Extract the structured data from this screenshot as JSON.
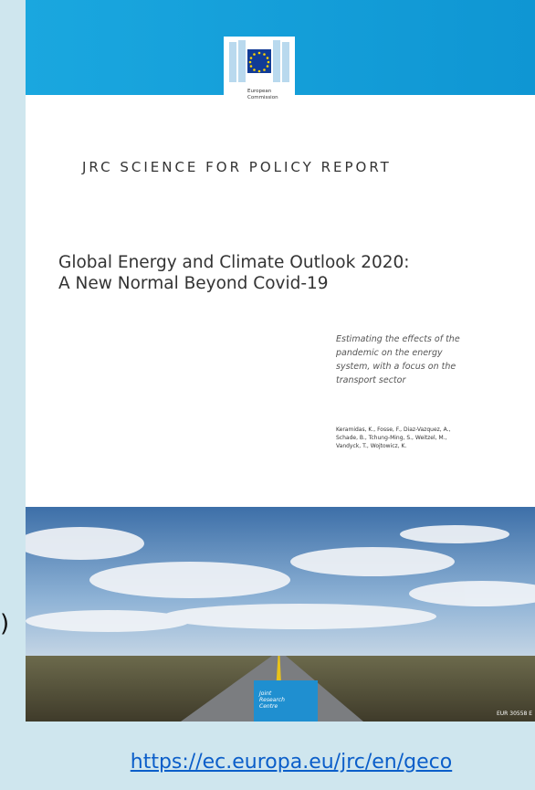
{
  "cover": {
    "logo_label": [
      "European",
      "Commission"
    ],
    "series": "JRC SCIENCE FOR POLICY REPORT",
    "title": [
      "Global Energy and Climate Outlook 2020:",
      "A New Normal Beyond Covid-19"
    ],
    "subtitle": [
      "Estimating the effects of the",
      "pandemic on the energy",
      "system, with a focus on the",
      "transport sector"
    ],
    "authors": [
      "Keramidas, K., Fosse, F., Diaz-Vazquez, A.,",
      "Schade, B., Tchung-Ming, S., Weitzel, M.,",
      "Vandyck, T., Wojtowicz, K."
    ],
    "jrc_label": [
      "Joint",
      "Research",
      "Centre"
    ],
    "report_number": "EUR 30558 E"
  },
  "link": "https://ec.europa.eu/jrc/en/geco",
  "side_fragment": ")"
}
